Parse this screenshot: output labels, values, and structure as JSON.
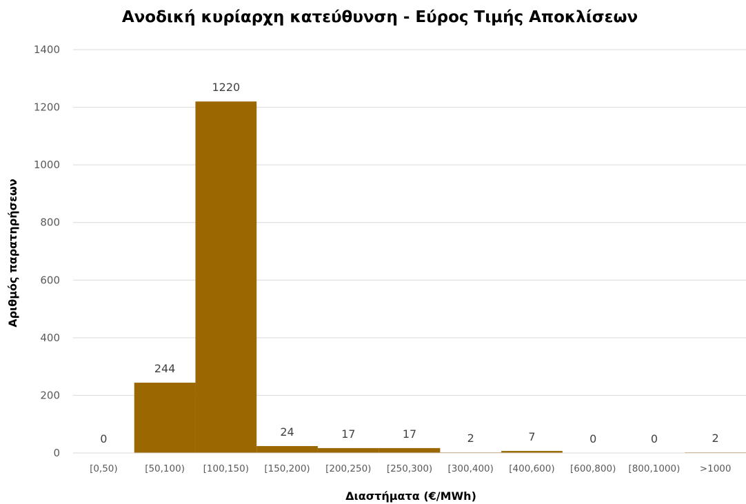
{
  "chart_data": {
    "type": "bar",
    "title": "Ανοδική κυρίαρχη κατεύθυνση - Εύρος  Τιμής Αποκλίσεων",
    "xlabel": "Διαστήματα (€/MWh)",
    "ylabel": "Αριθμός παρατηρήσεων",
    "categories": [
      "[0,50)",
      "[50,100)",
      "[100,150)",
      "[150,200)",
      "[200,250)",
      "[250,300)",
      "[300,400)",
      "[400,600)",
      "[600,800)",
      "[800,1000)",
      ">1000"
    ],
    "values": [
      0,
      244,
      1220,
      24,
      17,
      17,
      2,
      7,
      0,
      0,
      2
    ],
    "data_labels": [
      "0",
      "244",
      "1220",
      "24",
      "17",
      "17",
      "2",
      "7",
      "0",
      "0",
      "2"
    ],
    "ylim": [
      0,
      1400
    ],
    "yticks": [
      0,
      200,
      400,
      600,
      800,
      1000,
      1200,
      1400
    ],
    "ytick_labels": [
      "0",
      "200",
      "400",
      "600",
      "800",
      "1000",
      "1200",
      "1400"
    ],
    "grid": true,
    "legend": "none",
    "bar_color": "#9b6700"
  }
}
